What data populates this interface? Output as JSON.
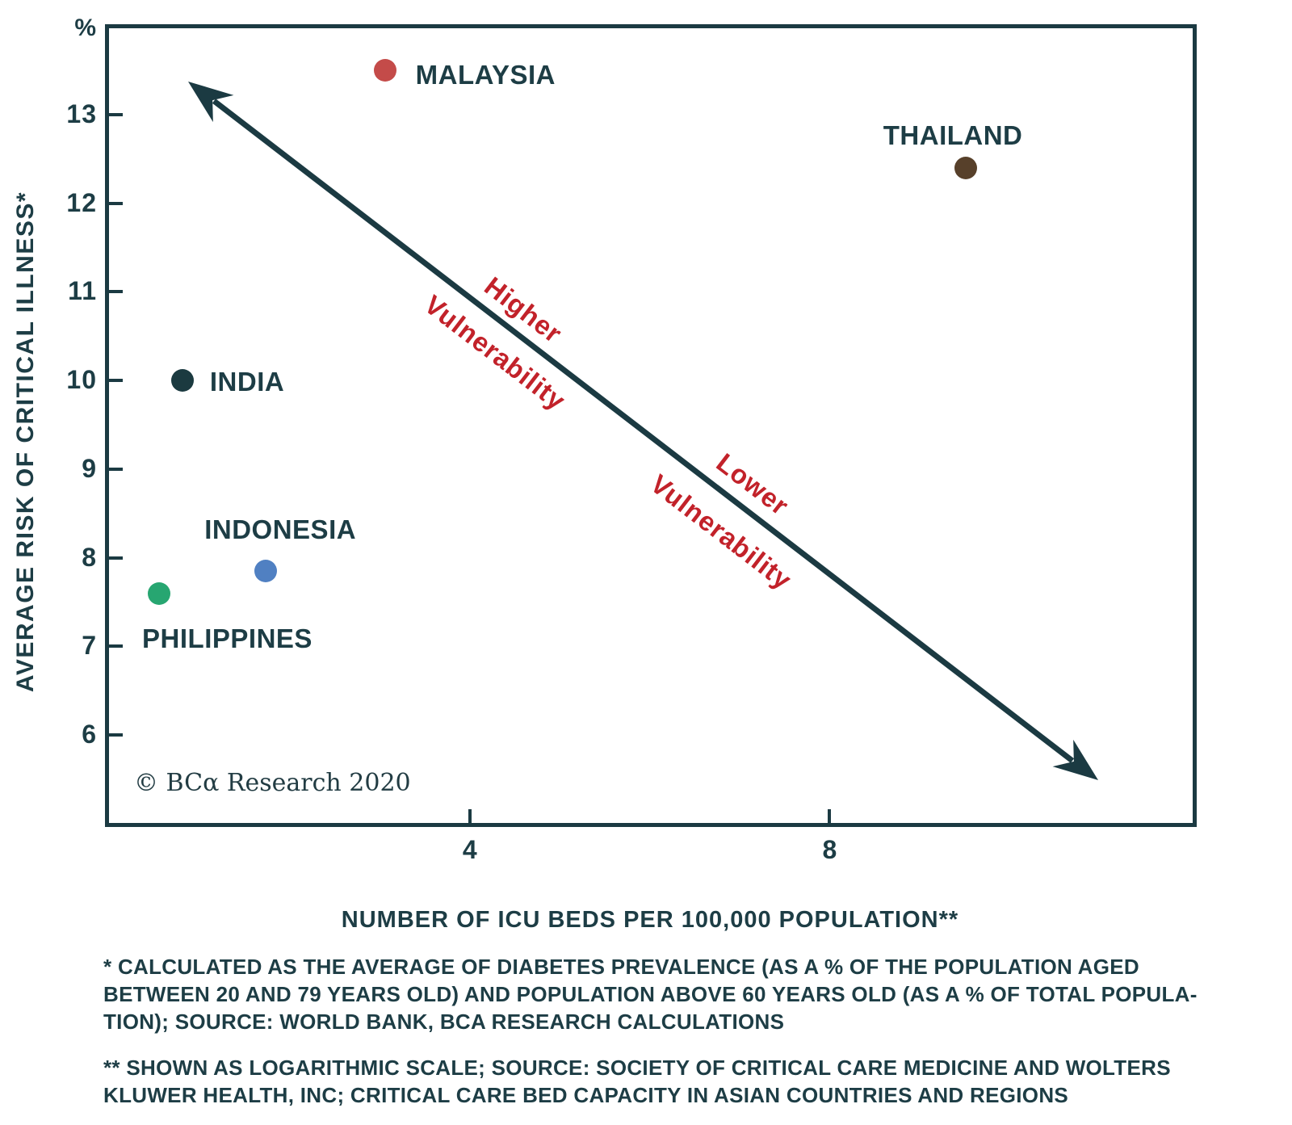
{
  "figure": {
    "y_axis_unit": "%",
    "y_axis_title": "AVERAGE RISK OF CRITICAL ILLNESS*",
    "x_axis_title": "NUMBER OF ICU BEDS PER 100,000 POPULATION**",
    "copyright": "© BCα Research 2020"
  },
  "annotations": {
    "higher_line1": "Higher",
    "higher_line2": "Vulnerability",
    "lower_line1": "Lower",
    "lower_line2": "Vulnerability",
    "color": "#c2222a"
  },
  "footnotes": [
    {
      "lines": [
        "* CALCULATED AS THE AVERAGE OF DIABETES PREVALENCE (AS A % OF THE POPULATION AGED",
        "BETWEEN 20 AND 79 YEARS OLD) AND POPULATION ABOVE 60 YEARS OLD (AS A % OF TOTAL POPULA-",
        "TION); SOURCE: WORLD BANK, BCA RESEARCH CALCULATIONS"
      ]
    },
    {
      "lines": [
        "** SHOWN AS LOGARITHMIC SCALE; SOURCE: SOCIETY OF CRITICAL CARE MEDICINE AND WOLTERS",
        "KLUWER HEALTH, INC; CRITICAL CARE BED CAPACITY IN ASIAN COUNTRIES AND REGIONS"
      ]
    }
  ],
  "chart_data": {
    "type": "scatter",
    "title": "",
    "xlabel": "NUMBER OF ICU BEDS PER 100,000 POPULATION**",
    "ylabel": "AVERAGE RISK OF CRITICAL ILLNESS*",
    "y_unit": "%",
    "x_scale": "logarithmic",
    "x_range": [
      1.99,
      16.2
    ],
    "y_range": [
      5.0,
      14.0
    ],
    "x_ticks": [
      4,
      8
    ],
    "y_ticks": [
      13,
      12,
      11,
      10,
      9,
      8,
      7,
      6
    ],
    "grid": false,
    "legend": "none",
    "points": [
      {
        "label": "MALAYSIA",
        "x": 3.4,
        "y": 13.5,
        "color": "#c44b49",
        "label_offset": [
          124,
          6
        ]
      },
      {
        "label": "THAILAND",
        "x": 10.4,
        "y": 12.4,
        "color": "#57402a",
        "label_offset": [
          -16,
          -40
        ]
      },
      {
        "label": "INDIA",
        "x": 2.3,
        "y": 10.0,
        "color": "#1b3a40",
        "label_offset": [
          80,
          2
        ]
      },
      {
        "label": "INDONESIA",
        "x": 2.7,
        "y": 7.85,
        "color": "#5080c2",
        "label_offset": [
          18,
          -51
        ]
      },
      {
        "label": "PHILIPPINES",
        "x": 2.2,
        "y": 7.6,
        "color": "#27a671",
        "label_offset": [
          84,
          56
        ]
      }
    ],
    "arrow_annotation": {
      "style": "double-headed diagonal arrow",
      "upper_text": "Higher Vulnerability",
      "lower_text": "Lower Vulnerability"
    }
  },
  "colors": {
    "axis": "#1b3a42",
    "text": "#1d3d45",
    "annotation_red": "#c2222a"
  }
}
